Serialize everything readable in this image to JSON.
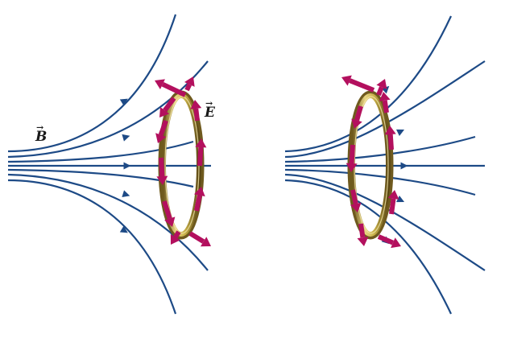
{
  "figure": {
    "labels": {
      "magnetic_field": "B",
      "electric_field": "E",
      "vector_arrow": "→"
    },
    "colors": {
      "field_lines": "#1d4a86",
      "ring_gold": "#c9b24a",
      "ring_dark": "#6f5a1e",
      "e_field_arrows": "#b3105e",
      "label_text": "#1a1a1a"
    },
    "panels": [
      {
        "name": "left",
        "field_line_direction": "left-to-right",
        "e_field_circulation": "clockwise"
      },
      {
        "name": "right",
        "field_line_direction": "left-to-right",
        "e_field_circulation": "counterclockwise"
      }
    ]
  }
}
